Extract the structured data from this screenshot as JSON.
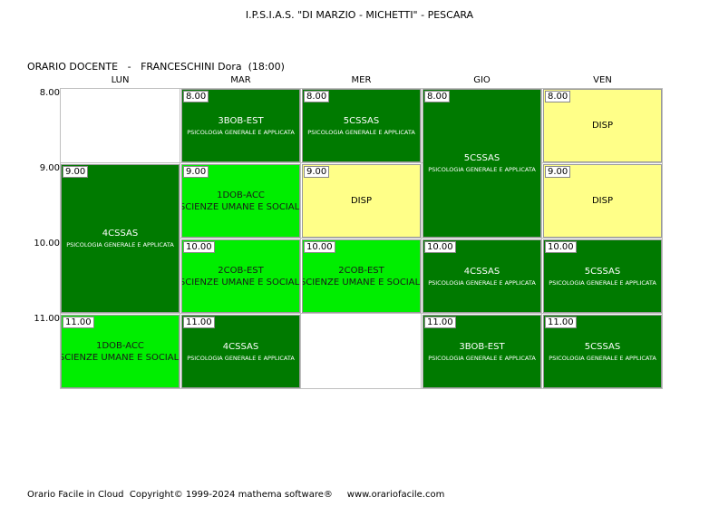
{
  "header": {
    "school": "I.P.S.I.A.S. \"DI MARZIO - MICHETTI\" - PESCARA",
    "schedule_type": "ORARIO DOCENTE",
    "separator": "-",
    "teacher": "FRANCESCHINI Dora",
    "hours": "(18:00)"
  },
  "days": [
    "LUN",
    "MAR",
    "MER",
    "GIO",
    "VEN"
  ],
  "times": [
    "8.00",
    "9.00",
    "10.00",
    "11.00"
  ],
  "lessons": [
    {
      "day": 0,
      "start": 1,
      "span": 2,
      "time": "9.00",
      "class": "4CSSAS",
      "subject": "PSICOLOGIA GENERALE E APPLICATA",
      "style": "dark"
    },
    {
      "day": 0,
      "start": 3,
      "span": 1,
      "time": "11.00",
      "class": "1DOB-ACC",
      "subject": "SCIENZE UMANE E SOCIALI",
      "style": "light"
    },
    {
      "day": 1,
      "start": 0,
      "span": 1,
      "time": "8.00",
      "class": "3BOB-EST",
      "subject": "PSICOLOGIA GENERALE E APPLICATA",
      "style": "dark"
    },
    {
      "day": 1,
      "start": 1,
      "span": 1,
      "time": "9.00",
      "class": "1DOB-ACC",
      "subject": "SCIENZE UMANE E SOCIALI",
      "style": "light"
    },
    {
      "day": 1,
      "start": 2,
      "span": 1,
      "time": "10.00",
      "class": "2COB-EST",
      "subject": "SCIENZE UMANE E SOCIALI",
      "style": "light"
    },
    {
      "day": 1,
      "start": 3,
      "span": 1,
      "time": "11.00",
      "class": "4CSSAS",
      "subject": "PSICOLOGIA GENERALE E APPLICATA",
      "style": "dark"
    },
    {
      "day": 2,
      "start": 0,
      "span": 1,
      "time": "8.00",
      "class": "5CSSAS",
      "subject": "PSICOLOGIA GENERALE E APPLICATA",
      "style": "dark"
    },
    {
      "day": 2,
      "start": 1,
      "span": 1,
      "time": "9.00",
      "class": "DISP",
      "subject": "",
      "style": "yellow"
    },
    {
      "day": 2,
      "start": 2,
      "span": 1,
      "time": "10.00",
      "class": "2COB-EST",
      "subject": "SCIENZE UMANE E SOCIALI",
      "style": "light"
    },
    {
      "day": 3,
      "start": 0,
      "span": 2,
      "time": "8.00",
      "class": "5CSSAS",
      "subject": "PSICOLOGIA GENERALE E APPLICATA",
      "style": "dark"
    },
    {
      "day": 3,
      "start": 2,
      "span": 1,
      "time": "10.00",
      "class": "4CSSAS",
      "subject": "PSICOLOGIA GENERALE E APPLICATA",
      "style": "dark"
    },
    {
      "day": 3,
      "start": 3,
      "span": 1,
      "time": "11.00",
      "class": "3BOB-EST",
      "subject": "PSICOLOGIA GENERALE E APPLICATA",
      "style": "dark"
    },
    {
      "day": 4,
      "start": 0,
      "span": 1,
      "time": "8.00",
      "class": "DISP",
      "subject": "",
      "style": "yellow"
    },
    {
      "day": 4,
      "start": 1,
      "span": 1,
      "time": "9.00",
      "class": "DISP",
      "subject": "",
      "style": "yellow"
    },
    {
      "day": 4,
      "start": 2,
      "span": 1,
      "time": "10.00",
      "class": "5CSSAS",
      "subject": "PSICOLOGIA GENERALE E APPLICATA",
      "style": "dark"
    },
    {
      "day": 4,
      "start": 3,
      "span": 1,
      "time": "11.00",
      "class": "5CSSAS",
      "subject": "PSICOLOGIA GENERALE E APPLICATA",
      "style": "dark"
    }
  ],
  "colors": {
    "dark": "#007a00",
    "light": "#00ee00",
    "yellow": "#ffff88"
  },
  "footer": {
    "app": "Orario Facile in Cloud",
    "copyright": "Copyright© 1999-2024 mathema software®",
    "website": "www.orariofacile.com"
  }
}
